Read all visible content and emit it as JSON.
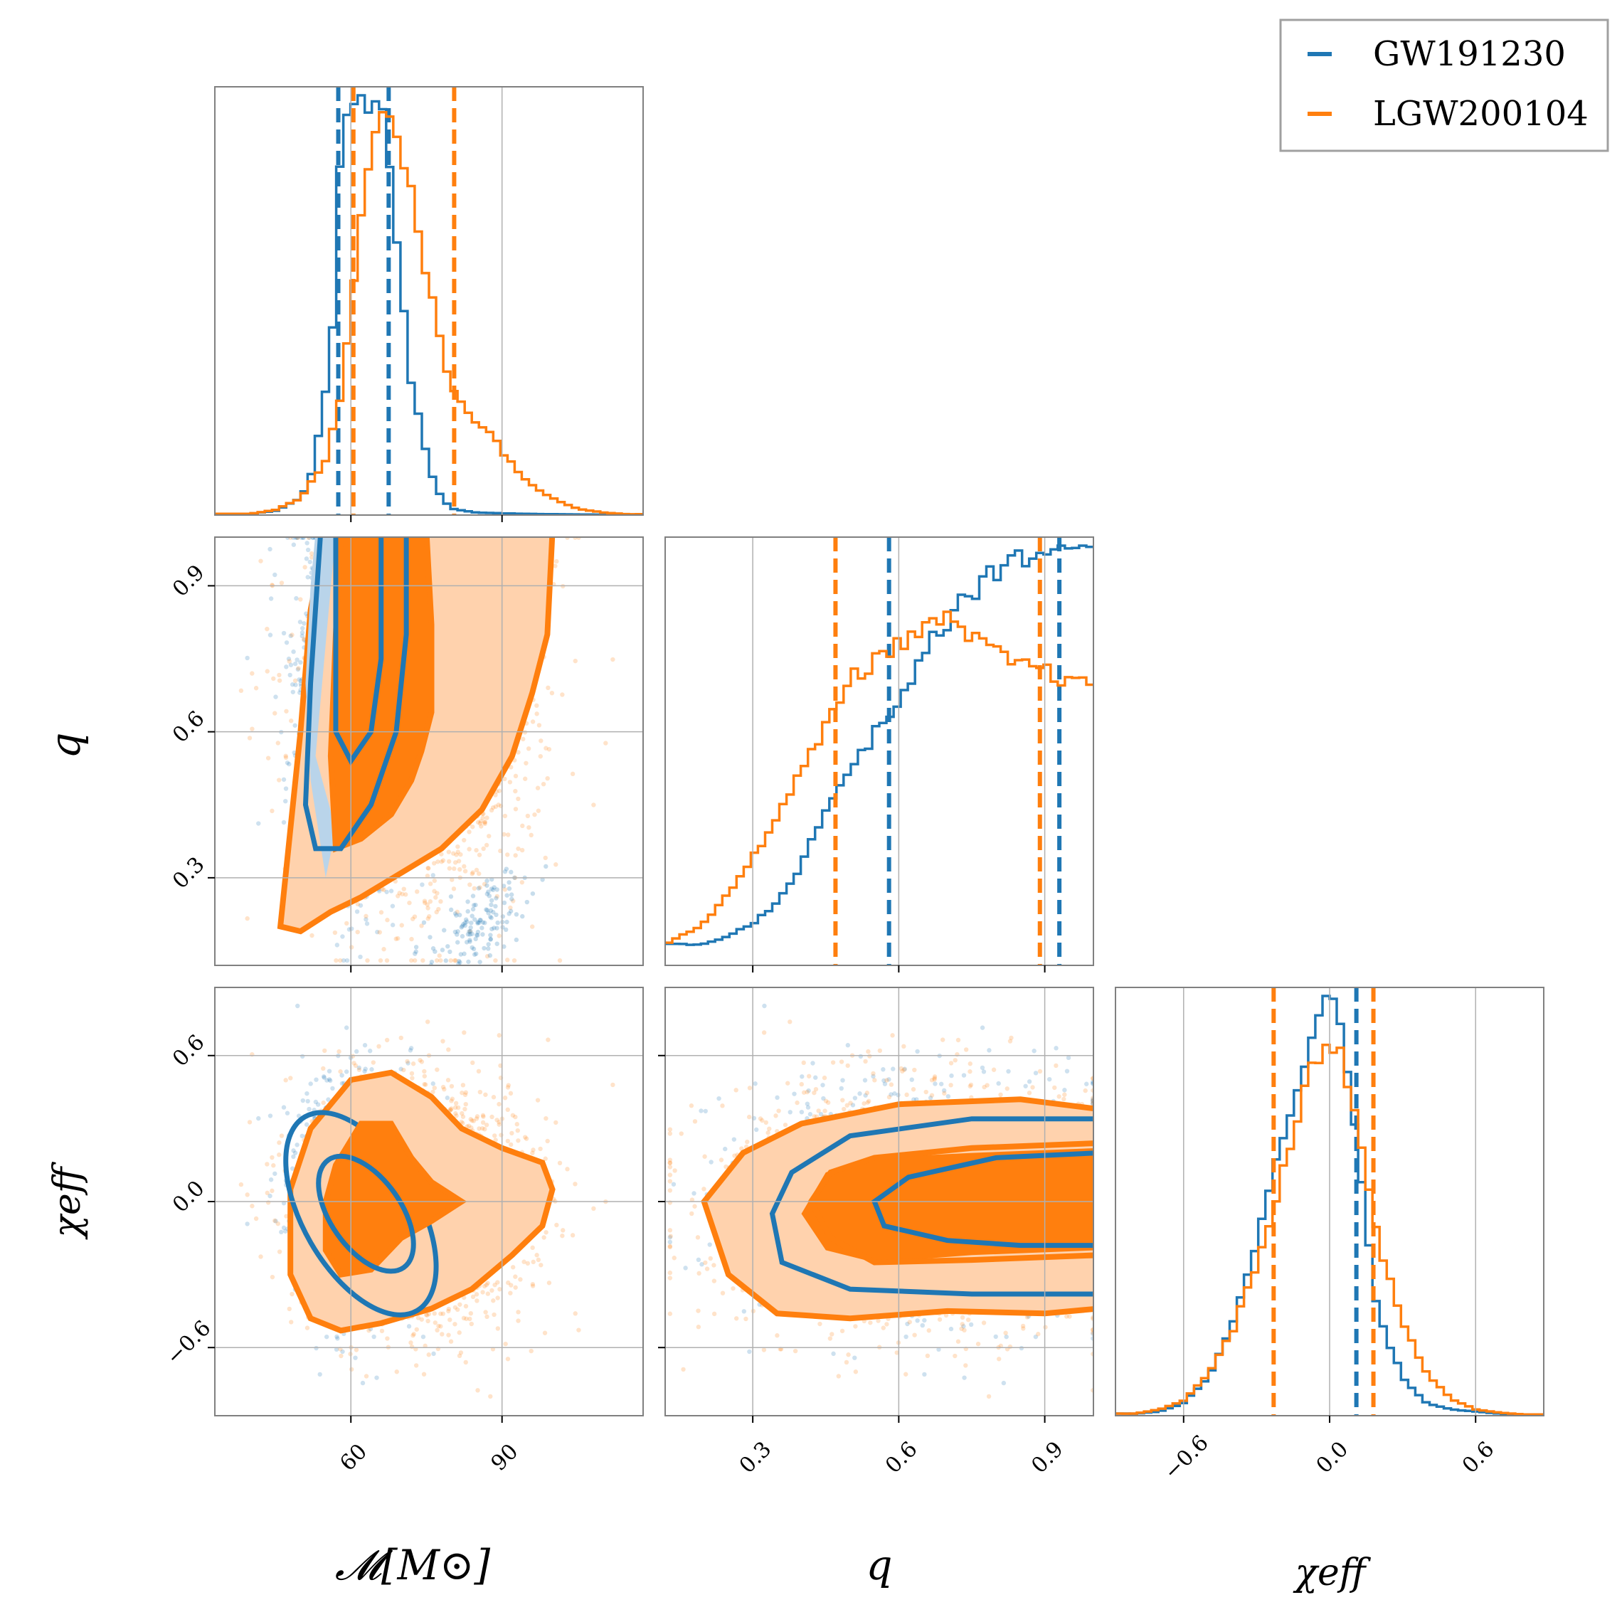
{
  "colors": {
    "blue": "#1f77b4",
    "orange": "#ff7f0e",
    "orange_light": "#ffd2ad",
    "blue_light": "#b9d4ea",
    "grid": "#b0b0b0",
    "frame": "#808080"
  },
  "legend": {
    "items": [
      {
        "label": "GW191230",
        "color": "#1f77b4"
      },
      {
        "label": "LGW200104",
        "color": "#ff7f0e"
      }
    ],
    "position": "top-right"
  },
  "axes": {
    "mc": {
      "label": "𝓜[M⊙]",
      "ticks": [
        60,
        90
      ],
      "tick_labels": [
        "60",
        "90"
      ],
      "range": [
        33,
        118
      ]
    },
    "q": {
      "label": "q",
      "ticks": [
        0.3,
        0.6,
        0.9
      ],
      "tick_labels": [
        "0.3",
        "0.6",
        "0.9"
      ],
      "range": [
        0.12,
        1.0
      ]
    },
    "chi": {
      "label": "χeff",
      "ticks": [
        -0.6,
        0.0,
        0.6
      ],
      "tick_labels": [
        "−0.6",
        "0.0",
        "0.6"
      ],
      "range": [
        -0.88,
        0.88
      ]
    }
  },
  "chart_data": {
    "type": "corner",
    "grid": true,
    "parameters": [
      "chirp_mass",
      "mass_ratio",
      "chi_eff"
    ],
    "series": [
      {
        "name": "GW191230",
        "color": "#1f77b4",
        "quantiles": {
          "mc": [
            57.5,
            67.5
          ],
          "q": [
            0.58,
            0.93
          ],
          "chi": [
            0.11,
            null
          ]
        },
        "hist_mc": {
          "x": [
            40,
            45,
            50,
            52,
            54,
            56,
            57,
            58,
            60,
            62,
            64,
            66,
            68,
            70,
            72,
            74,
            76,
            78,
            80,
            85,
            90,
            100,
            110
          ],
          "y": [
            0.003,
            0.01,
            0.04,
            0.09,
            0.22,
            0.38,
            0.55,
            0.92,
            0.97,
            1.0,
            0.96,
            0.97,
            0.82,
            0.55,
            0.32,
            0.2,
            0.1,
            0.04,
            0.015,
            0.006,
            0.004,
            0.002,
            0.001
          ]
        },
        "hist_q": {
          "x": [
            0.12,
            0.2,
            0.25,
            0.3,
            0.35,
            0.4,
            0.45,
            0.5,
            0.55,
            0.6,
            0.65,
            0.7,
            0.75,
            0.8,
            0.85,
            0.9,
            0.95,
            1.0
          ],
          "y": [
            0.05,
            0.05,
            0.07,
            0.1,
            0.15,
            0.24,
            0.37,
            0.47,
            0.55,
            0.63,
            0.74,
            0.82,
            0.89,
            0.94,
            0.97,
            0.99,
            1.0,
            1.0
          ]
        },
        "hist_chi": {
          "x": [
            -0.8,
            -0.7,
            -0.6,
            -0.5,
            -0.4,
            -0.3,
            -0.2,
            -0.1,
            -0.05,
            0.0,
            0.05,
            0.1,
            0.15,
            0.2,
            0.3,
            0.4,
            0.5,
            0.6,
            0.7,
            0.8
          ],
          "y": [
            0.005,
            0.01,
            0.03,
            0.09,
            0.22,
            0.42,
            0.64,
            0.84,
            0.94,
            1.0,
            0.92,
            0.72,
            0.44,
            0.24,
            0.09,
            0.03,
            0.015,
            0.01,
            0.005,
            0.002
          ]
        }
      },
      {
        "name": "LGW200104",
        "color": "#ff7f0e",
        "quantiles": {
          "mc": [
            60.5,
            80.5
          ],
          "q": [
            0.47,
            0.89
          ],
          "chi": [
            -0.23,
            0.18
          ]
        },
        "hist_mc": {
          "x": [
            40,
            45,
            50,
            55,
            58,
            60,
            62,
            64,
            66,
            68,
            70,
            72,
            74,
            76,
            78,
            80,
            82,
            85,
            88,
            90,
            95,
            100,
            105,
            110,
            115
          ],
          "y": [
            0.003,
            0.012,
            0.04,
            0.13,
            0.29,
            0.5,
            0.72,
            0.88,
            0.95,
            0.98,
            0.88,
            0.76,
            0.64,
            0.52,
            0.4,
            0.3,
            0.27,
            0.22,
            0.2,
            0.15,
            0.08,
            0.04,
            0.015,
            0.006,
            0.002
          ]
        },
        "hist_q": {
          "x": [
            0.12,
            0.2,
            0.25,
            0.3,
            0.35,
            0.4,
            0.45,
            0.5,
            0.55,
            0.6,
            0.65,
            0.7,
            0.75,
            0.8,
            0.85,
            0.9,
            0.95,
            1.0
          ],
          "y": [
            0.05,
            0.1,
            0.17,
            0.26,
            0.35,
            0.46,
            0.57,
            0.69,
            0.72,
            0.77,
            0.8,
            0.82,
            0.78,
            0.74,
            0.72,
            0.7,
            0.68,
            0.66
          ]
        },
        "hist_chi": {
          "x": [
            -0.8,
            -0.7,
            -0.6,
            -0.5,
            -0.4,
            -0.3,
            -0.2,
            -0.1,
            -0.05,
            0.0,
            0.05,
            0.1,
            0.15,
            0.2,
            0.3,
            0.4,
            0.5,
            0.6,
            0.7,
            0.8
          ],
          "y": [
            0.005,
            0.015,
            0.035,
            0.1,
            0.2,
            0.36,
            0.56,
            0.78,
            0.86,
            0.9,
            0.86,
            0.74,
            0.56,
            0.42,
            0.22,
            0.1,
            0.04,
            0.015,
            0.007,
            0.003
          ]
        }
      }
    ]
  }
}
